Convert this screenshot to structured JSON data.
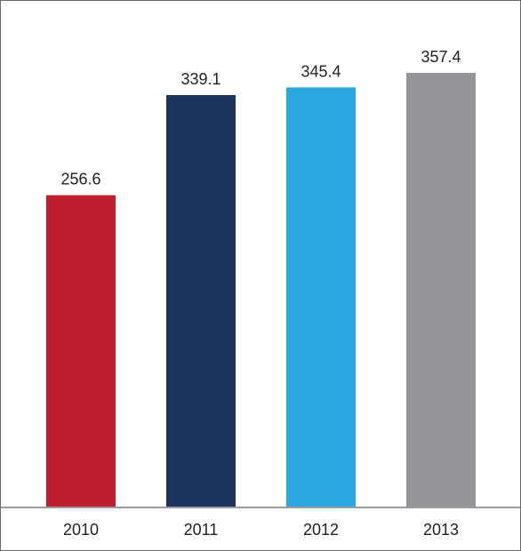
{
  "chart_data": {
    "type": "bar",
    "categories": [
      "2010",
      "2011",
      "2012",
      "2013"
    ],
    "values": [
      256.6,
      339.1,
      345.4,
      357.4
    ],
    "value_labels": [
      "256.6",
      "339.1",
      "345.4",
      "357.4"
    ],
    "colors": [
      "#be1e2d",
      "#1c355e",
      "#29a8e0",
      "#939598"
    ],
    "title": "",
    "xlabel": "",
    "ylabel": "",
    "ylim": [
      0,
      357.4
    ],
    "grid": false,
    "legend": "none"
  }
}
